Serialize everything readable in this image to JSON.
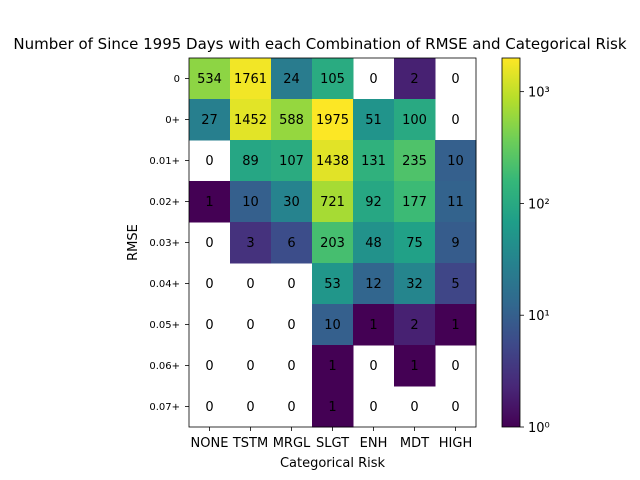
{
  "chart_data": {
    "type": "heatmap",
    "title": "Number of Since 1995 Days with each Combination of RMSE and Categorical Risk",
    "xlabel": "Categorical Risk",
    "ylabel": "RMSE",
    "x_categories": [
      "NONE",
      "TSTM",
      "MRGL",
      "SLGT",
      "ENH",
      "MDT",
      "HIGH"
    ],
    "y_categories": [
      "0",
      "0+",
      "0.01+",
      "0.02+",
      "0.03+",
      "0.04+",
      "0.05+",
      "0.06+",
      "0.07+"
    ],
    "values": [
      [
        534,
        1761,
        24,
        105,
        0,
        2,
        0
      ],
      [
        27,
        1452,
        588,
        1975,
        51,
        100,
        0
      ],
      [
        0,
        89,
        107,
        1438,
        131,
        235,
        10
      ],
      [
        1,
        10,
        30,
        721,
        92,
        177,
        11
      ],
      [
        0,
        3,
        6,
        203,
        48,
        75,
        9
      ],
      [
        0,
        0,
        0,
        53,
        12,
        32,
        5
      ],
      [
        0,
        0,
        0,
        10,
        1,
        2,
        1
      ],
      [
        0,
        0,
        0,
        1,
        0,
        1,
        0
      ],
      [
        0,
        0,
        0,
        1,
        0,
        0,
        0
      ]
    ],
    "colormap": "viridis",
    "color_scale": "log",
    "color_range": [
      1,
      2000
    ],
    "zero_cells_blank": true,
    "colorbar_ticks": [
      "10⁰",
      "10¹",
      "10²",
      "10³"
    ],
    "grid": false
  }
}
